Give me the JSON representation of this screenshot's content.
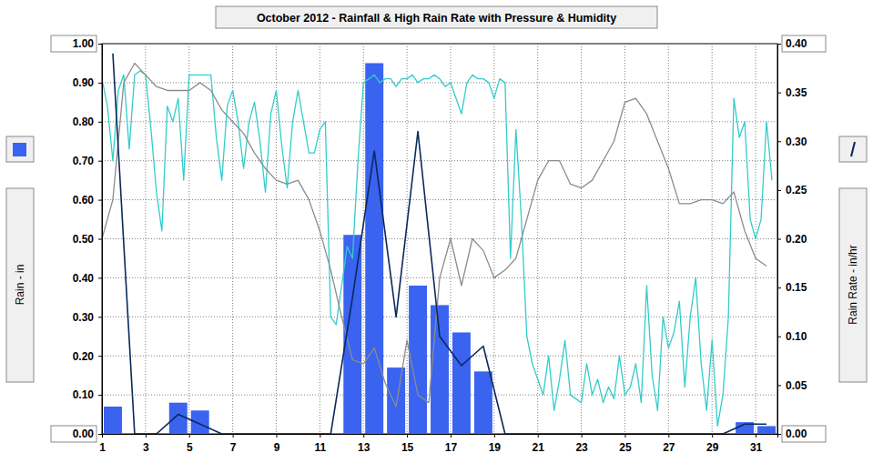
{
  "chart_data": {
    "type": "bar",
    "title": "October 2012 - Rainfall & High Rain Rate with Pressure & Humidity",
    "y_label": "Rain - in",
    "y2_label": "Rain Rate - in/hr",
    "xlim": [
      1,
      32
    ],
    "xticks": [
      1,
      3,
      5,
      7,
      9,
      11,
      13,
      15,
      17,
      19,
      21,
      23,
      25,
      27,
      29,
      31
    ],
    "ylim": [
      0,
      1
    ],
    "yticks": [
      {
        "value": 0,
        "label": "0.00"
      },
      {
        "value": 0.1,
        "label": "0.10"
      },
      {
        "value": 0.2,
        "label": "0.20"
      },
      {
        "value": 0.3,
        "label": "0.30"
      },
      {
        "value": 0.4,
        "label": "0.40"
      },
      {
        "value": 0.5,
        "label": "0.50"
      },
      {
        "value": 0.6,
        "label": "0.60"
      },
      {
        "value": 0.7,
        "label": "0.70"
      },
      {
        "value": 0.8,
        "label": "0.80"
      },
      {
        "value": 0.9,
        "label": "0.90"
      },
      {
        "value": 1,
        "label": "1.00"
      }
    ],
    "y2lim": [
      0,
      0.4
    ],
    "y2ticks": [
      {
        "value": 0,
        "label": "0.00"
      },
      {
        "value": 0.05,
        "label": "0.05"
      },
      {
        "value": 0.1,
        "label": "0.10"
      },
      {
        "value": 0.15,
        "label": "0.15"
      },
      {
        "value": 0.2,
        "label": "0.20"
      },
      {
        "value": 0.25,
        "label": "0.25"
      },
      {
        "value": 0.3,
        "label": "0.30"
      },
      {
        "value": 0.35,
        "label": "0.35"
      },
      {
        "value": 0.4,
        "label": "0.40"
      }
    ],
    "grid": true,
    "series": [
      {
        "type": "bar",
        "color": "#3a63f0",
        "x": [
          1,
          2,
          3,
          4,
          5,
          6,
          7,
          8,
          9,
          10,
          11,
          12,
          13,
          14,
          15,
          16,
          17,
          18,
          19,
          20,
          21,
          22,
          23,
          24,
          25,
          26,
          27,
          28,
          29,
          30,
          31
        ],
        "values": [
          0.07,
          0,
          0,
          0.08,
          0.06,
          0,
          0,
          0,
          0,
          0,
          0,
          0.51,
          0.95,
          0.17,
          0.38,
          0.33,
          0.26,
          0.16,
          0,
          0,
          0,
          0,
          0,
          0,
          0,
          0,
          0,
          0,
          0,
          0.03,
          0.02
        ]
      },
      {
        "type": "line",
        "color": "#33cccc",
        "x": [
          1,
          1.25,
          1.5,
          1.75,
          2,
          2.25,
          2.5,
          2.75,
          3,
          3.25,
          3.5,
          3.75,
          4,
          4.25,
          4.5,
          4.75,
          5,
          5.25,
          5.5,
          5.75,
          6,
          6.25,
          6.5,
          6.75,
          7,
          7.25,
          7.5,
          7.75,
          8,
          8.25,
          8.5,
          8.75,
          9,
          9.25,
          9.5,
          9.75,
          10,
          10.25,
          10.5,
          10.75,
          11,
          11.25,
          11.5,
          11.75,
          12,
          12.25,
          12.5,
          12.75,
          13,
          13.25,
          13.5,
          13.75,
          14,
          14.25,
          14.5,
          14.75,
          15,
          15.25,
          15.5,
          15.75,
          16,
          16.25,
          16.5,
          16.75,
          17,
          17.25,
          17.5,
          17.75,
          18,
          18.25,
          18.5,
          18.75,
          19,
          19.25,
          19.5,
          19.75,
          20,
          20.25,
          20.5,
          20.75,
          21,
          21.25,
          21.5,
          21.75,
          22,
          22.25,
          22.5,
          22.75,
          23,
          23.25,
          23.5,
          23.75,
          24,
          24.25,
          24.5,
          24.75,
          25,
          25.25,
          25.5,
          25.75,
          26,
          26.25,
          26.5,
          26.75,
          27,
          27.25,
          27.5,
          27.75,
          28,
          28.25,
          28.5,
          28.75,
          29,
          29.25,
          29.5,
          29.75,
          30,
          30.25,
          30.5,
          30.75,
          31,
          31.25,
          31.5,
          31.75
        ],
        "values": [
          0.91,
          0.84,
          0.7,
          0.88,
          0.92,
          0.73,
          0.92,
          0.93,
          0.92,
          0.78,
          0.62,
          0.52,
          0.84,
          0.8,
          0.86,
          0.65,
          0.92,
          0.92,
          0.92,
          0.92,
          0.92,
          0.76,
          0.65,
          0.84,
          0.88,
          0.8,
          0.68,
          0.8,
          0.85,
          0.75,
          0.62,
          0.82,
          0.88,
          0.74,
          0.63,
          0.8,
          0.88,
          0.8,
          0.72,
          0.72,
          0.78,
          0.8,
          0.3,
          0.28,
          0.38,
          0.48,
          0.45,
          0.7,
          0.9,
          0.91,
          0.92,
          0.9,
          0.91,
          0.91,
          0.89,
          0.91,
          0.91,
          0.92,
          0.9,
          0.91,
          0.91,
          0.92,
          0.91,
          0.89,
          0.9,
          0.86,
          0.82,
          0.9,
          0.92,
          0.91,
          0.91,
          0.9,
          0.86,
          0.91,
          0.9,
          0.45,
          0.78,
          0.55,
          0.25,
          0.18,
          0.14,
          0.1,
          0.2,
          0.06,
          0.14,
          0.24,
          0.1,
          0.09,
          0.08,
          0.18,
          0.1,
          0.14,
          0.08,
          0.12,
          0.09,
          0.2,
          0.1,
          0.12,
          0.18,
          0.08,
          0.38,
          0.15,
          0.06,
          0.3,
          0.22,
          0.26,
          0.34,
          0.12,
          0.3,
          0.4,
          0.18,
          0.06,
          0.24,
          0.02,
          0.1,
          0.3,
          0.86,
          0.76,
          0.8,
          0.55,
          0.5,
          0.55,
          0.8,
          0.65
        ]
      },
      {
        "type": "line",
        "color": "#8c8c8c",
        "x": [
          1,
          1.5,
          2,
          2.5,
          3,
          3.5,
          4,
          4.5,
          5,
          5.5,
          6,
          6.5,
          7,
          7.5,
          8,
          8.5,
          9,
          9.5,
          10,
          10.5,
          11,
          11.5,
          12,
          12.5,
          13,
          13.5,
          14,
          14.5,
          15,
          15.5,
          16,
          16.5,
          17,
          17.5,
          18,
          18.5,
          19,
          19.5,
          20,
          20.5,
          21,
          21.5,
          22,
          22.5,
          23,
          23.5,
          24,
          24.5,
          25,
          25.5,
          26,
          26.5,
          27,
          27.5,
          28,
          28.5,
          29,
          29.5,
          30,
          30.5,
          31,
          31.5
        ],
        "values": [
          0.5,
          0.6,
          0.9,
          0.95,
          0.92,
          0.89,
          0.88,
          0.88,
          0.88,
          0.9,
          0.88,
          0.83,
          0.8,
          0.77,
          0.72,
          0.68,
          0.65,
          0.64,
          0.65,
          0.6,
          0.52,
          0.42,
          0.3,
          0.19,
          0.18,
          0.22,
          0.13,
          0.07,
          0.24,
          0.1,
          0.08,
          0.4,
          0.5,
          0.38,
          0.5,
          0.47,
          0.4,
          0.42,
          0.45,
          0.55,
          0.65,
          0.7,
          0.7,
          0.64,
          0.63,
          0.65,
          0.7,
          0.75,
          0.85,
          0.86,
          0.82,
          0.75,
          0.68,
          0.59,
          0.59,
          0.6,
          0.6,
          0.59,
          0.62,
          0.52,
          0.45,
          0.43
        ]
      },
      {
        "type": "line",
        "axis": "y2",
        "color": "#0a2a5c",
        "x": [
          1.5,
          2.5,
          3.5,
          4.5,
          5.5,
          6.5,
          7.5,
          8.5,
          9.5,
          10.5,
          11.5,
          12.5,
          13.5,
          14.5,
          15.5,
          16.5,
          17.5,
          18.5,
          19.5,
          20.5,
          21.5,
          22.5,
          23.5,
          24.5,
          25.5,
          26.5,
          27.5,
          28.5,
          29.5,
          30.5,
          31.5
        ],
        "values": [
          0.39,
          0,
          0,
          0.02,
          0.01,
          0,
          0,
          0,
          0,
          0,
          0,
          0.14,
          0.29,
          0.12,
          0.31,
          0.1,
          0.07,
          0.09,
          0,
          0,
          0,
          0,
          0,
          0,
          0,
          0,
          0,
          0,
          0,
          0.01,
          0.01
        ]
      }
    ]
  }
}
